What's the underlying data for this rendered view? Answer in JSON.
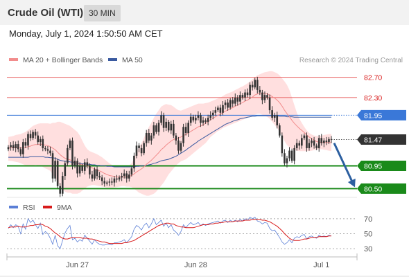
{
  "header": {
    "title": "Crude Oil (WTI)",
    "timeframe": "30 MIN",
    "datetime": "Monday, July 1, 2024 1:50:50 AM CET"
  },
  "copyright": "Research © 2024 Trading Central",
  "colors": {
    "bollinger_fill": "#ffd9d9",
    "ma20": "#f28c8c",
    "ma50": "#3a5aa0",
    "resistance": "#e86060",
    "pivot": "#3a78d8",
    "support": "#1a8a1a",
    "current": "#333333",
    "rsi": "#5b7fd6",
    "rsi_ma": "#d81b1b",
    "candle": "#333333",
    "arrow": "#2c5fa0"
  },
  "chart_data": [
    {
      "type": "candlestick",
      "legend": [
        {
          "name": "MA 20 + Bollinger Bands",
          "color": "#f28c8c"
        },
        {
          "name": "MA 50",
          "color": "#3a5aa0"
        }
      ],
      "legend_placement": "top-left",
      "ylim": [
        80.3,
        82.9
      ],
      "x_ticks": [
        {
          "label": "Jun 27",
          "index": 28
        },
        {
          "label": "Jun 28",
          "index": 76
        },
        {
          "label": "Jul 1",
          "index": 127
        }
      ],
      "levels": [
        {
          "value": 82.7,
          "label": "82.70",
          "kind": "resistance"
        },
        {
          "value": 82.3,
          "label": "82.30",
          "kind": "resistance"
        },
        {
          "value": 81.95,
          "label": "81.95",
          "kind": "pivot"
        },
        {
          "value": 81.47,
          "label": "81.47",
          "kind": "current"
        },
        {
          "value": 80.95,
          "label": "80.95",
          "kind": "support"
        },
        {
          "value": 80.5,
          "label": "80.50",
          "kind": "support"
        }
      ],
      "close": [
        81.32,
        81.36,
        81.3,
        81.38,
        81.28,
        81.18,
        81.42,
        81.35,
        81.58,
        81.5,
        81.62,
        81.55,
        81.42,
        81.48,
        81.3,
        81.28,
        81.25,
        81.2,
        80.7,
        81.05,
        80.55,
        80.4,
        80.75,
        81.0,
        81.3,
        81.45,
        80.95,
        81.05,
        80.8,
        80.95,
        80.85,
        81.02,
        80.95,
        80.78,
        80.7,
        80.88,
        80.75,
        80.72,
        80.65,
        80.6,
        80.62,
        80.64,
        80.62,
        80.7,
        80.68,
        80.72,
        80.75,
        80.8,
        80.7,
        80.78,
        80.9,
        81.15,
        81.35,
        81.3,
        81.2,
        81.4,
        81.6,
        81.45,
        81.55,
        81.75,
        81.62,
        81.8,
        81.95,
        81.7,
        81.82,
        81.65,
        81.78,
        81.55,
        81.45,
        81.25,
        81.4,
        81.72,
        81.6,
        81.8,
        81.92,
        81.85,
        81.9,
        81.95,
        81.8,
        81.85,
        81.82,
        81.9,
        81.95,
        82.0,
        82.05,
        82.1,
        82.0,
        82.15,
        82.2,
        82.1,
        82.25,
        82.18,
        82.3,
        82.22,
        82.35,
        82.3,
        82.4,
        82.35,
        82.55,
        82.5,
        82.65,
        82.45,
        82.4,
        82.25,
        82.35,
        82.3,
        82.05,
        81.9,
        81.95,
        81.75,
        81.55,
        81.2,
        81.0,
        81.1,
        81.25,
        81.05,
        81.3,
        81.4,
        81.35,
        81.5,
        81.55,
        81.3,
        81.4,
        81.45,
        81.35,
        81.3,
        81.5,
        81.4,
        81.45,
        81.42,
        81.48,
        81.47
      ],
      "ma20": [
        81.3,
        81.31,
        81.31,
        81.32,
        81.31,
        81.3,
        81.31,
        81.31,
        81.33,
        81.34,
        81.36,
        81.37,
        81.37,
        81.38,
        81.37,
        81.36,
        81.35,
        81.33,
        81.3,
        81.27,
        81.22,
        81.17,
        81.13,
        81.1,
        81.08,
        81.07,
        81.04,
        81.02,
        81.0,
        80.98,
        80.97,
        80.96,
        80.95,
        80.93,
        80.91,
        80.89,
        80.87,
        80.85,
        80.83,
        80.8,
        80.78,
        80.76,
        80.75,
        80.74,
        80.73,
        80.73,
        80.73,
        80.73,
        80.73,
        80.74,
        80.76,
        80.79,
        80.83,
        80.86,
        80.89,
        80.93,
        80.98,
        81.02,
        81.06,
        81.11,
        81.16,
        81.21,
        81.27,
        81.31,
        81.36,
        81.4,
        81.44,
        81.47,
        81.49,
        81.5,
        81.52,
        81.55,
        81.57,
        81.6,
        81.63,
        81.66,
        81.69,
        81.72,
        81.74,
        81.76,
        81.79,
        81.82,
        81.86,
        81.89,
        81.92,
        81.95,
        81.97,
        82.0,
        82.03,
        82.05,
        82.08,
        82.1,
        82.13,
        82.15,
        82.18,
        82.2,
        82.23,
        82.25,
        82.28,
        82.31,
        82.35,
        82.37,
        82.38,
        82.38,
        82.38,
        82.37,
        82.35,
        82.32,
        82.29,
        82.25,
        82.2,
        82.13,
        82.05,
        81.98,
        81.92,
        81.85,
        81.79,
        81.74,
        81.69,
        81.65,
        81.61,
        81.56,
        81.52,
        81.49,
        81.46,
        81.43,
        81.42,
        81.41,
        81.41,
        81.41,
        81.41,
        81.41
      ],
      "bb_upper": [
        81.52,
        81.53,
        81.54,
        81.56,
        81.57,
        81.58,
        81.6,
        81.62,
        81.66,
        81.7,
        81.74,
        81.76,
        81.78,
        81.79,
        81.79,
        81.79,
        81.79,
        81.78,
        81.8,
        81.8,
        81.82,
        81.82,
        81.8,
        81.78,
        81.76,
        81.74,
        81.7,
        81.66,
        81.62,
        81.55,
        81.45,
        81.35,
        81.28,
        81.24,
        81.22,
        81.2,
        81.18,
        81.15,
        81.12,
        81.08,
        81.04,
        81.0,
        80.97,
        80.95,
        80.93,
        80.92,
        80.92,
        80.93,
        80.94,
        80.96,
        81.0,
        81.1,
        81.22,
        81.32,
        81.4,
        81.5,
        81.62,
        81.72,
        81.8,
        81.9,
        81.98,
        82.05,
        82.12,
        82.15,
        82.17,
        82.16,
        82.15,
        82.12,
        82.08,
        82.05,
        82.04,
        82.06,
        82.08,
        82.1,
        82.12,
        82.14,
        82.16,
        82.18,
        82.18,
        82.18,
        82.19,
        82.2,
        82.22,
        82.24,
        82.26,
        82.28,
        82.3,
        82.33,
        82.36,
        82.38,
        82.4,
        82.42,
        82.45,
        82.47,
        82.5,
        82.52,
        82.55,
        82.58,
        82.62,
        82.66,
        82.7,
        82.74,
        82.76,
        82.78,
        82.8,
        82.81,
        82.82,
        82.82,
        82.8,
        82.78,
        82.74,
        82.68,
        82.62,
        82.55,
        82.45,
        82.3,
        82.15,
        82.0,
        81.88,
        81.8,
        81.72,
        81.65,
        81.6,
        81.57,
        81.55,
        81.54,
        81.54,
        81.55,
        81.56,
        81.57,
        81.58,
        81.58
      ],
      "bb_lower": [
        81.05,
        81.05,
        81.04,
        81.03,
        81.02,
        81.0,
        80.98,
        80.96,
        80.95,
        80.95,
        80.96,
        80.97,
        80.96,
        80.95,
        80.93,
        80.9,
        80.88,
        80.85,
        80.78,
        80.72,
        80.64,
        80.55,
        80.48,
        80.44,
        80.42,
        80.42,
        80.4,
        80.4,
        80.4,
        80.42,
        80.46,
        80.5,
        80.54,
        80.56,
        80.57,
        80.57,
        80.56,
        80.55,
        80.54,
        80.53,
        80.52,
        80.52,
        80.52,
        80.52,
        80.53,
        80.54,
        80.55,
        80.55,
        80.54,
        80.54,
        80.53,
        80.5,
        80.46,
        80.42,
        80.4,
        80.38,
        80.36,
        80.36,
        80.38,
        80.4,
        80.44,
        80.5,
        80.56,
        80.62,
        80.7,
        80.78,
        80.84,
        80.9,
        80.96,
        81.0,
        81.04,
        81.06,
        81.08,
        81.12,
        81.16,
        81.2,
        81.24,
        81.28,
        81.32,
        81.36,
        81.4,
        81.46,
        81.52,
        81.56,
        81.6,
        81.64,
        81.66,
        81.7,
        81.72,
        81.74,
        81.76,
        81.78,
        81.8,
        81.82,
        81.84,
        81.86,
        81.88,
        81.9,
        81.92,
        81.94,
        81.96,
        81.98,
        81.98,
        81.96,
        81.94,
        81.92,
        81.88,
        81.82,
        81.76,
        81.7,
        81.62,
        81.54,
        81.44,
        81.36,
        81.32,
        81.28,
        81.26,
        81.25,
        81.24,
        81.24,
        81.24,
        81.24,
        81.24,
        81.25,
        81.26,
        81.27,
        81.28,
        81.28,
        81.27,
        81.26,
        81.25,
        81.24
      ],
      "ma50": [
        81.12,
        81.12,
        81.12,
        81.12,
        81.12,
        81.12,
        81.12,
        81.12,
        81.12,
        81.13,
        81.13,
        81.13,
        81.13,
        81.13,
        81.13,
        81.12,
        81.12,
        81.11,
        81.11,
        81.1,
        81.08,
        81.06,
        81.05,
        81.04,
        81.04,
        81.03,
        81.02,
        81.01,
        81.0,
        81.0,
        80.99,
        80.99,
        80.98,
        80.98,
        80.97,
        80.97,
        80.96,
        80.96,
        80.95,
        80.95,
        80.94,
        80.94,
        80.94,
        80.93,
        80.93,
        80.93,
        80.93,
        80.93,
        80.93,
        80.93,
        80.93,
        80.93,
        80.94,
        80.94,
        80.95,
        80.95,
        80.96,
        80.97,
        80.98,
        81.0,
        81.01,
        81.03,
        81.05,
        81.06,
        81.07,
        81.08,
        81.1,
        81.12,
        81.14,
        81.17,
        81.2,
        81.23,
        81.26,
        81.3,
        81.33,
        81.37,
        81.4,
        81.44,
        81.47,
        81.5,
        81.53,
        81.56,
        81.59,
        81.62,
        81.65,
        81.68,
        81.71,
        81.74,
        81.77,
        81.79,
        81.81,
        81.83,
        81.85,
        81.86,
        81.88,
        81.89,
        81.9,
        81.91,
        81.92,
        81.93,
        81.93,
        81.94,
        81.94,
        81.94,
        81.94,
        81.94,
        81.94,
        81.94,
        81.94,
        81.94,
        81.93,
        81.93,
        81.93,
        81.92,
        81.92,
        81.92,
        81.91,
        81.91,
        81.91,
        81.91,
        81.91,
        81.91,
        81.91,
        81.91,
        81.91,
        81.91,
        81.91,
        81.91,
        81.91,
        81.91,
        81.91,
        81.91
      ],
      "forecast_arrow": {
        "from": 81.4,
        "to": 80.5
      }
    },
    {
      "type": "line",
      "legend": [
        {
          "name": "RSI",
          "color": "#5b7fd6"
        },
        {
          "name": "9MA",
          "color": "#d81b1b"
        }
      ],
      "legend_placement": "top-left",
      "ylim": [
        20,
        80
      ],
      "y_ticks": [
        "70",
        "50",
        "30"
      ],
      "rsi": [
        57,
        62,
        58,
        62,
        60,
        50,
        63,
        56,
        70,
        65,
        68,
        62,
        57,
        64,
        49,
        53,
        50,
        44,
        36,
        48,
        34,
        30,
        41,
        51,
        57,
        61,
        42,
        44,
        39,
        42,
        40,
        48,
        44,
        40,
        36,
        42,
        38,
        36,
        35,
        35,
        36,
        36,
        35,
        38,
        38,
        39,
        40,
        42,
        38,
        42,
        46,
        56,
        61,
        59,
        55,
        61,
        64,
        58,
        63,
        70,
        62,
        65,
        68,
        60,
        64,
        58,
        62,
        55,
        52,
        48,
        53,
        62,
        58,
        62,
        65,
        62,
        63,
        65,
        61,
        63,
        61,
        63,
        64,
        65,
        66,
        67,
        64,
        67,
        68,
        65,
        68,
        66,
        68,
        66,
        69,
        67,
        70,
        68,
        72,
        70,
        72,
        67,
        66,
        63,
        65,
        64,
        57,
        54,
        55,
        50,
        45,
        39,
        36,
        38,
        42,
        38,
        44,
        46,
        45,
        48,
        49,
        43,
        46,
        47,
        45,
        44,
        48,
        46,
        47,
        46,
        48,
        47
      ],
      "rsi_ma": [
        58,
        59,
        59,
        59,
        60,
        59,
        59,
        59,
        60,
        61,
        61,
        62,
        62,
        63,
        62,
        60,
        59,
        57,
        54,
        51,
        49,
        46,
        44,
        43,
        43,
        44,
        45,
        45,
        45,
        45,
        44,
        44,
        44,
        43,
        43,
        42,
        41,
        40,
        39,
        39,
        38,
        37,
        37,
        37,
        37,
        37,
        37,
        38,
        38,
        39,
        40,
        41,
        43,
        45,
        47,
        49,
        51,
        53,
        55,
        57,
        59,
        61,
        62,
        63,
        64,
        64,
        63,
        63,
        61,
        60,
        59,
        59,
        58,
        58,
        58,
        58,
        59,
        60,
        61,
        62,
        62,
        62,
        63,
        63,
        64,
        64,
        65,
        65,
        66,
        66,
        66,
        66,
        67,
        67,
        67,
        67,
        68,
        68,
        68,
        69,
        69,
        69,
        69,
        68,
        68,
        67,
        66,
        64,
        62,
        60,
        57,
        54,
        50,
        47,
        44,
        42,
        41,
        41,
        41,
        42,
        43,
        43,
        44,
        45,
        45,
        45,
        46,
        46,
        46,
        46,
        47,
        47
      ]
    }
  ]
}
